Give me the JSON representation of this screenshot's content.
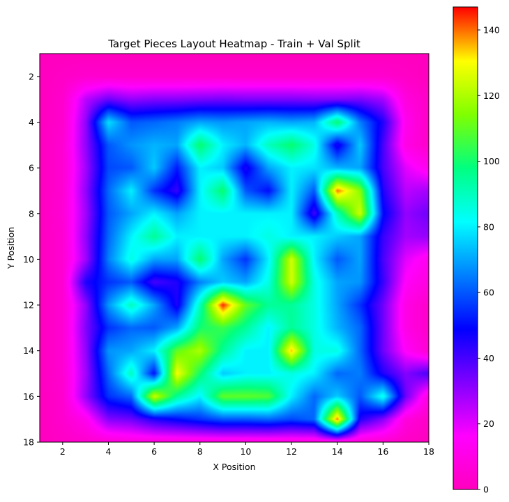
{
  "chart_data": {
    "type": "heatmap",
    "title": "Target Pieces Layout Heatmap - Train + Val Split",
    "xlabel": "X Position",
    "ylabel": "Y Position",
    "xlim": [
      1,
      18
    ],
    "ylim": [
      18,
      1
    ],
    "y_axis_inverted": true,
    "x_ticks": [
      "2",
      "4",
      "6",
      "8",
      "10",
      "12",
      "14",
      "16",
      "18"
    ],
    "y_ticks": [
      "2",
      "4",
      "6",
      "8",
      "10",
      "12",
      "14",
      "16",
      "18"
    ],
    "colormap": "gist_rainbow_r (magenta → blue → cyan → green → yellow → red)",
    "colorbar": {
      "min": 0,
      "max": 147,
      "ticks": [
        "0",
        "20",
        "40",
        "60",
        "80",
        "100",
        "120",
        "140"
      ]
    },
    "interpolation": "bilinear",
    "grid": false,
    "x": [
      1,
      2,
      3,
      4,
      5,
      6,
      7,
      8,
      9,
      10,
      11,
      12,
      13,
      14,
      15,
      16,
      17,
      18
    ],
    "y": [
      1,
      2,
      3,
      4,
      5,
      6,
      7,
      8,
      9,
      10,
      11,
      12,
      13,
      14,
      15,
      16,
      17,
      18
    ],
    "values": [
      [
        0,
        0,
        0,
        0,
        0,
        0,
        0,
        0,
        0,
        0,
        0,
        0,
        0,
        0,
        0,
        0,
        0,
        0
      ],
      [
        0,
        2,
        4,
        4,
        4,
        4,
        4,
        4,
        4,
        4,
        4,
        4,
        4,
        4,
        4,
        4,
        2,
        0
      ],
      [
        0,
        4,
        25,
        35,
        30,
        32,
        32,
        33,
        34,
        33,
        33,
        33,
        32,
        32,
        33,
        28,
        8,
        2
      ],
      [
        0,
        4,
        30,
        78,
        60,
        62,
        65,
        70,
        68,
        70,
        72,
        70,
        72,
        100,
        65,
        45,
        12,
        2
      ],
      [
        0,
        5,
        30,
        60,
        68,
        72,
        70,
        100,
        80,
        72,
        90,
        100,
        85,
        45,
        75,
        40,
        10,
        3
      ],
      [
        0,
        5,
        28,
        58,
        60,
        75,
        52,
        80,
        75,
        45,
        70,
        80,
        78,
        72,
        70,
        40,
        20,
        12
      ],
      [
        0,
        5,
        30,
        62,
        80,
        55,
        42,
        80,
        100,
        60,
        50,
        80,
        60,
        140,
        115,
        45,
        25,
        28
      ],
      [
        0,
        6,
        28,
        60,
        70,
        80,
        70,
        80,
        80,
        80,
        80,
        80,
        40,
        90,
        125,
        50,
        30,
        35
      ],
      [
        0,
        5,
        30,
        62,
        80,
        95,
        80,
        80,
        80,
        80,
        85,
        80,
        80,
        75,
        70,
        42,
        28,
        30
      ],
      [
        0,
        5,
        28,
        65,
        85,
        70,
        70,
        100,
        70,
        55,
        80,
        125,
        80,
        60,
        70,
        40,
        20,
        12
      ],
      [
        0,
        5,
        45,
        55,
        60,
        40,
        45,
        65,
        75,
        70,
        85,
        125,
        85,
        70,
        68,
        42,
        15,
        8
      ],
      [
        0,
        5,
        30,
        68,
        90,
        70,
        45,
        90,
        145,
        110,
        95,
        95,
        85,
        70,
        55,
        35,
        10,
        3
      ],
      [
        0,
        5,
        32,
        55,
        62,
        60,
        70,
        100,
        105,
        95,
        80,
        95,
        85,
        72,
        62,
        35,
        10,
        3
      ],
      [
        0,
        5,
        30,
        68,
        70,
        80,
        110,
        120,
        95,
        80,
        80,
        135,
        85,
        85,
        62,
        35,
        15,
        5
      ],
      [
        0,
        5,
        28,
        62,
        90,
        50,
        130,
        100,
        75,
        80,
        80,
        85,
        80,
        62,
        65,
        45,
        32,
        40
      ],
      [
        0,
        4,
        30,
        55,
        62,
        125,
        95,
        80,
        110,
        110,
        108,
        80,
        62,
        75,
        60,
        85,
        35,
        8
      ],
      [
        0,
        4,
        12,
        32,
        35,
        45,
        50,
        55,
        60,
        60,
        62,
        58,
        62,
        140,
        45,
        32,
        8,
        2
      ],
      [
        0,
        2,
        4,
        6,
        8,
        8,
        8,
        8,
        8,
        8,
        8,
        8,
        8,
        8,
        6,
        4,
        2,
        0
      ]
    ]
  }
}
